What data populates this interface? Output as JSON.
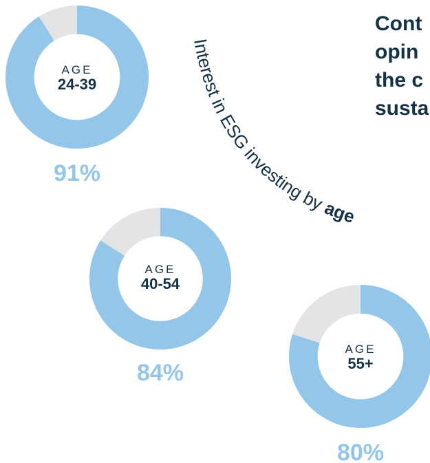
{
  "headline": {
    "lines": [
      "Cont",
      "opin",
      "the c",
      "susta"
    ]
  },
  "curved_caption": {
    "prefix": "Interest in ESG investing by ",
    "emphasis": "age"
  },
  "colors": {
    "ring_fill": "#93c6e8",
    "ring_rest": "#e3e4e6",
    "text_dark": "#153246",
    "pct_text": "#93c6e8"
  },
  "chart_data": {
    "type": "pie",
    "subtype": "donut",
    "title": "",
    "items": [
      {
        "age_word": "AGE",
        "age_range": "24-39",
        "value": 91,
        "label": "91%"
      },
      {
        "age_word": "AGE",
        "age_range": "40-54",
        "value": 84,
        "label": "84%"
      },
      {
        "age_word": "AGE",
        "age_range": "55+",
        "value": 80,
        "label": "80%"
      }
    ]
  }
}
